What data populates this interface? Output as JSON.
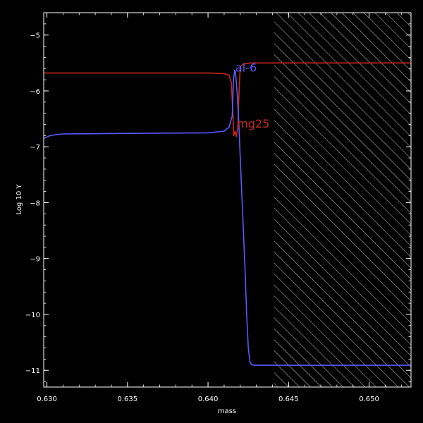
{
  "chart_data": {
    "type": "line",
    "title": "",
    "xlabel": "mass",
    "ylabel": "Log 10 Y",
    "xlim": [
      0.6298,
      0.6526
    ],
    "ylim": [
      -11.3,
      -4.6
    ],
    "x_ticks": [
      {
        "value": 0.63,
        "label": "0.630"
      },
      {
        "value": 0.635,
        "label": "0.635"
      },
      {
        "value": 0.64,
        "label": "0.640"
      },
      {
        "value": 0.645,
        "label": "0.645"
      },
      {
        "value": 0.65,
        "label": "0.650"
      }
    ],
    "y_ticks": [
      {
        "value": -5,
        "label": "−5"
      },
      {
        "value": -6,
        "label": "−6"
      },
      {
        "value": -7,
        "label": "−7"
      },
      {
        "value": -8,
        "label": "−8"
      },
      {
        "value": -9,
        "label": "−9"
      },
      {
        "value": -10,
        "label": "−10"
      },
      {
        "value": -11,
        "label": "−11"
      }
    ],
    "grid": false,
    "hatched_region": {
      "x_from": 0.6441,
      "x_to": 0.6526
    },
    "series": [
      {
        "name": "mg25",
        "color": "#c8281e",
        "x": [
          0.6298,
          0.632,
          0.636,
          0.64,
          0.641,
          0.6413,
          0.64145,
          0.64155,
          0.6416,
          0.64168,
          0.64175,
          0.64185,
          0.6419,
          0.642,
          0.6422,
          0.6426,
          0.6441,
          0.6526
        ],
        "y": [
          -5.68,
          -5.68,
          -5.68,
          -5.68,
          -5.69,
          -5.72,
          -5.85,
          -6.45,
          -6.8,
          -6.72,
          -6.82,
          -6.65,
          -6.2,
          -5.56,
          -5.52,
          -5.5,
          -5.5,
          -5.5
        ]
      },
      {
        "name": "al-6",
        "color": "#5a5aff",
        "x": [
          0.6298,
          0.6302,
          0.6306,
          0.631,
          0.635,
          0.64,
          0.641,
          0.6413,
          0.6415,
          0.64158,
          0.64165,
          0.6417,
          0.6418,
          0.6419,
          0.642,
          0.64215,
          0.6423,
          0.6424,
          0.6425,
          0.6426,
          0.6427,
          0.6429,
          0.6441,
          0.6526
        ],
        "y": [
          -6.85,
          -6.8,
          -6.78,
          -6.77,
          -6.76,
          -6.75,
          -6.72,
          -6.65,
          -6.45,
          -5.8,
          -5.63,
          -5.65,
          -6.0,
          -6.5,
          -7.2,
          -8.2,
          -9.2,
          -10.0,
          -10.6,
          -10.85,
          -10.9,
          -10.91,
          -10.91,
          -10.91
        ]
      }
    ],
    "annotations": [
      {
        "text": "al-6",
        "color": "#5a5aff",
        "x": 0.6417,
        "y": -5.58
      },
      {
        "text": "mg25",
        "color": "#c8281e",
        "x": 0.6418,
        "y": -6.58
      }
    ]
  }
}
